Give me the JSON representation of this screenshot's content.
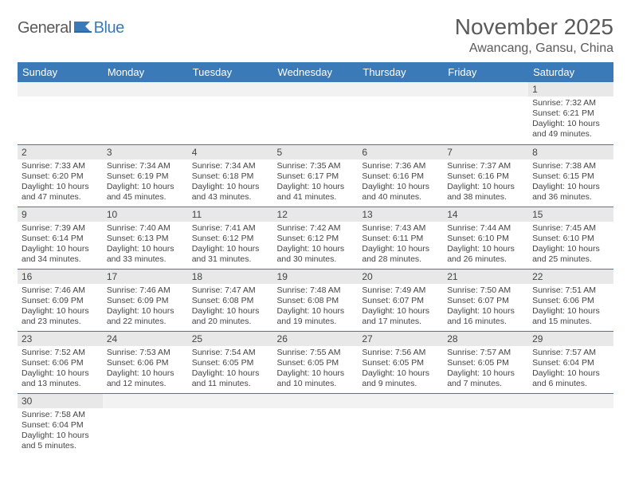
{
  "logo": {
    "general": "General",
    "blue": "Blue"
  },
  "title": "November 2025",
  "location": "Awancang, Gansu, China",
  "colors": {
    "header_bg": "#3a7ab8",
    "header_text": "#ffffff",
    "daynum_bg": "#e8e8e8",
    "row_border": "#3a7ab8",
    "text": "#444444",
    "title_text": "#5a5a5a"
  },
  "day_headers": [
    "Sunday",
    "Monday",
    "Tuesday",
    "Wednesday",
    "Thursday",
    "Friday",
    "Saturday"
  ],
  "weeks": [
    [
      null,
      null,
      null,
      null,
      null,
      null,
      {
        "n": "1",
        "sunrise": "Sunrise: 7:32 AM",
        "sunset": "Sunset: 6:21 PM",
        "daylight": "Daylight: 10 hours and 49 minutes."
      }
    ],
    [
      {
        "n": "2",
        "sunrise": "Sunrise: 7:33 AM",
        "sunset": "Sunset: 6:20 PM",
        "daylight": "Daylight: 10 hours and 47 minutes."
      },
      {
        "n": "3",
        "sunrise": "Sunrise: 7:34 AM",
        "sunset": "Sunset: 6:19 PM",
        "daylight": "Daylight: 10 hours and 45 minutes."
      },
      {
        "n": "4",
        "sunrise": "Sunrise: 7:34 AM",
        "sunset": "Sunset: 6:18 PM",
        "daylight": "Daylight: 10 hours and 43 minutes."
      },
      {
        "n": "5",
        "sunrise": "Sunrise: 7:35 AM",
        "sunset": "Sunset: 6:17 PM",
        "daylight": "Daylight: 10 hours and 41 minutes."
      },
      {
        "n": "6",
        "sunrise": "Sunrise: 7:36 AM",
        "sunset": "Sunset: 6:16 PM",
        "daylight": "Daylight: 10 hours and 40 minutes."
      },
      {
        "n": "7",
        "sunrise": "Sunrise: 7:37 AM",
        "sunset": "Sunset: 6:16 PM",
        "daylight": "Daylight: 10 hours and 38 minutes."
      },
      {
        "n": "8",
        "sunrise": "Sunrise: 7:38 AM",
        "sunset": "Sunset: 6:15 PM",
        "daylight": "Daylight: 10 hours and 36 minutes."
      }
    ],
    [
      {
        "n": "9",
        "sunrise": "Sunrise: 7:39 AM",
        "sunset": "Sunset: 6:14 PM",
        "daylight": "Daylight: 10 hours and 34 minutes."
      },
      {
        "n": "10",
        "sunrise": "Sunrise: 7:40 AM",
        "sunset": "Sunset: 6:13 PM",
        "daylight": "Daylight: 10 hours and 33 minutes."
      },
      {
        "n": "11",
        "sunrise": "Sunrise: 7:41 AM",
        "sunset": "Sunset: 6:12 PM",
        "daylight": "Daylight: 10 hours and 31 minutes."
      },
      {
        "n": "12",
        "sunrise": "Sunrise: 7:42 AM",
        "sunset": "Sunset: 6:12 PM",
        "daylight": "Daylight: 10 hours and 30 minutes."
      },
      {
        "n": "13",
        "sunrise": "Sunrise: 7:43 AM",
        "sunset": "Sunset: 6:11 PM",
        "daylight": "Daylight: 10 hours and 28 minutes."
      },
      {
        "n": "14",
        "sunrise": "Sunrise: 7:44 AM",
        "sunset": "Sunset: 6:10 PM",
        "daylight": "Daylight: 10 hours and 26 minutes."
      },
      {
        "n": "15",
        "sunrise": "Sunrise: 7:45 AM",
        "sunset": "Sunset: 6:10 PM",
        "daylight": "Daylight: 10 hours and 25 minutes."
      }
    ],
    [
      {
        "n": "16",
        "sunrise": "Sunrise: 7:46 AM",
        "sunset": "Sunset: 6:09 PM",
        "daylight": "Daylight: 10 hours and 23 minutes."
      },
      {
        "n": "17",
        "sunrise": "Sunrise: 7:46 AM",
        "sunset": "Sunset: 6:09 PM",
        "daylight": "Daylight: 10 hours and 22 minutes."
      },
      {
        "n": "18",
        "sunrise": "Sunrise: 7:47 AM",
        "sunset": "Sunset: 6:08 PM",
        "daylight": "Daylight: 10 hours and 20 minutes."
      },
      {
        "n": "19",
        "sunrise": "Sunrise: 7:48 AM",
        "sunset": "Sunset: 6:08 PM",
        "daylight": "Daylight: 10 hours and 19 minutes."
      },
      {
        "n": "20",
        "sunrise": "Sunrise: 7:49 AM",
        "sunset": "Sunset: 6:07 PM",
        "daylight": "Daylight: 10 hours and 17 minutes."
      },
      {
        "n": "21",
        "sunrise": "Sunrise: 7:50 AM",
        "sunset": "Sunset: 6:07 PM",
        "daylight": "Daylight: 10 hours and 16 minutes."
      },
      {
        "n": "22",
        "sunrise": "Sunrise: 7:51 AM",
        "sunset": "Sunset: 6:06 PM",
        "daylight": "Daylight: 10 hours and 15 minutes."
      }
    ],
    [
      {
        "n": "23",
        "sunrise": "Sunrise: 7:52 AM",
        "sunset": "Sunset: 6:06 PM",
        "daylight": "Daylight: 10 hours and 13 minutes."
      },
      {
        "n": "24",
        "sunrise": "Sunrise: 7:53 AM",
        "sunset": "Sunset: 6:06 PM",
        "daylight": "Daylight: 10 hours and 12 minutes."
      },
      {
        "n": "25",
        "sunrise": "Sunrise: 7:54 AM",
        "sunset": "Sunset: 6:05 PM",
        "daylight": "Daylight: 10 hours and 11 minutes."
      },
      {
        "n": "26",
        "sunrise": "Sunrise: 7:55 AM",
        "sunset": "Sunset: 6:05 PM",
        "daylight": "Daylight: 10 hours and 10 minutes."
      },
      {
        "n": "27",
        "sunrise": "Sunrise: 7:56 AM",
        "sunset": "Sunset: 6:05 PM",
        "daylight": "Daylight: 10 hours and 9 minutes."
      },
      {
        "n": "28",
        "sunrise": "Sunrise: 7:57 AM",
        "sunset": "Sunset: 6:05 PM",
        "daylight": "Daylight: 10 hours and 7 minutes."
      },
      {
        "n": "29",
        "sunrise": "Sunrise: 7:57 AM",
        "sunset": "Sunset: 6:04 PM",
        "daylight": "Daylight: 10 hours and 6 minutes."
      }
    ],
    [
      {
        "n": "30",
        "sunrise": "Sunrise: 7:58 AM",
        "sunset": "Sunset: 6:04 PM",
        "daylight": "Daylight: 10 hours and 5 minutes."
      },
      null,
      null,
      null,
      null,
      null,
      null
    ]
  ]
}
